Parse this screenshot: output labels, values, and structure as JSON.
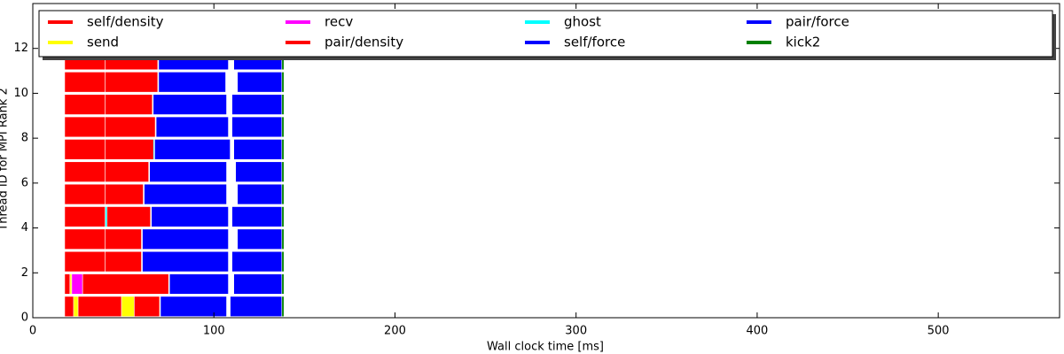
{
  "chart_data": {
    "type": "timeline",
    "xlabel": "Wall clock time [ms]",
    "ylabel": "Thread ID for MPI Rank 2",
    "xlim": [
      0,
      567
    ],
    "ylim": [
      0,
      14
    ],
    "xticks": [
      0,
      100,
      200,
      300,
      400,
      500
    ],
    "yticks": [
      0,
      2,
      4,
      6,
      8,
      10,
      12
    ],
    "series": [
      {
        "name": "self/density",
        "color": "#ff0000",
        "threads": [
          0,
          1,
          2,
          3,
          4,
          5,
          6,
          7,
          8,
          9,
          10,
          11
        ],
        "starts": [
          17.6,
          17.6,
          17.6,
          17.6,
          17.6,
          17.6,
          17.6,
          17.6,
          17.6,
          17.6,
          17.6,
          17.6
        ],
        "ends": [
          49,
          20.5,
          40,
          40,
          40,
          40,
          40,
          40,
          40,
          40,
          40,
          40
        ]
      },
      {
        "name": "send",
        "color": "#ffff00",
        "threads": [
          0,
          0,
          1
        ],
        "starts": [
          22.5,
          49,
          20.5
        ],
        "ends": [
          25,
          56,
          21.5
        ]
      },
      {
        "name": "recv",
        "color": "#ff00ff",
        "threads": [
          1
        ],
        "starts": [
          21.5
        ],
        "ends": [
          27.5
        ]
      },
      {
        "name": "pair/density",
        "color": "#ff0000",
        "threads": [
          0,
          1,
          2,
          3,
          4,
          5,
          6,
          7,
          8,
          9,
          10,
          11
        ],
        "starts": [
          56,
          27.5,
          40,
          40,
          40,
          40,
          40,
          40,
          40,
          40,
          40,
          40
        ],
        "ends": [
          70,
          75,
          60,
          60,
          65,
          61,
          64,
          66.7,
          67.6,
          66,
          69,
          69
        ]
      },
      {
        "name": "ghost",
        "color": "#00ffff",
        "threads": [
          4,
          7
        ],
        "starts": [
          40,
          66.7
        ],
        "ends": [
          41,
          67.3
        ]
      },
      {
        "name": "self/force",
        "color": "#0000ff",
        "threads": [
          0,
          1,
          2,
          3,
          4,
          5,
          6,
          7,
          8,
          9,
          10,
          11
        ],
        "starts": [
          70.5,
          75.5,
          60.5,
          60.5,
          65.5,
          61.5,
          64.5,
          67.3,
          68.1,
          66.5,
          69.5,
          69.5
        ],
        "ends": [
          107,
          108,
          108,
          108,
          108,
          107,
          107,
          109,
          108,
          107,
          106.5,
          108
        ]
      },
      {
        "name": "pair/force",
        "color": "#0000ff",
        "threads": [
          0,
          1,
          2,
          3,
          4,
          5,
          6,
          7,
          8,
          9,
          10,
          11
        ],
        "starts": [
          109,
          111,
          110,
          113,
          110,
          113,
          112,
          111,
          110,
          110,
          113,
          111
        ],
        "ends": [
          137.5,
          137.5,
          137.5,
          137.5,
          137.5,
          137.5,
          137.5,
          137.5,
          137.5,
          137.5,
          137.5,
          137.5
        ]
      },
      {
        "name": "kick2",
        "color": "#008000",
        "threads": [
          0,
          1,
          2,
          3,
          4,
          5,
          6,
          7,
          8,
          9,
          10,
          11
        ],
        "starts": [
          137.5,
          137.5,
          137.5,
          137.5,
          137.5,
          137.5,
          137.5,
          137.5,
          137.5,
          137.5,
          137.5,
          137.5
        ],
        "ends": [
          138.7,
          138.7,
          138.7,
          138.7,
          138.7,
          138.7,
          138.7,
          138.7,
          138.7,
          138.7,
          138.7,
          138.7
        ]
      }
    ]
  }
}
